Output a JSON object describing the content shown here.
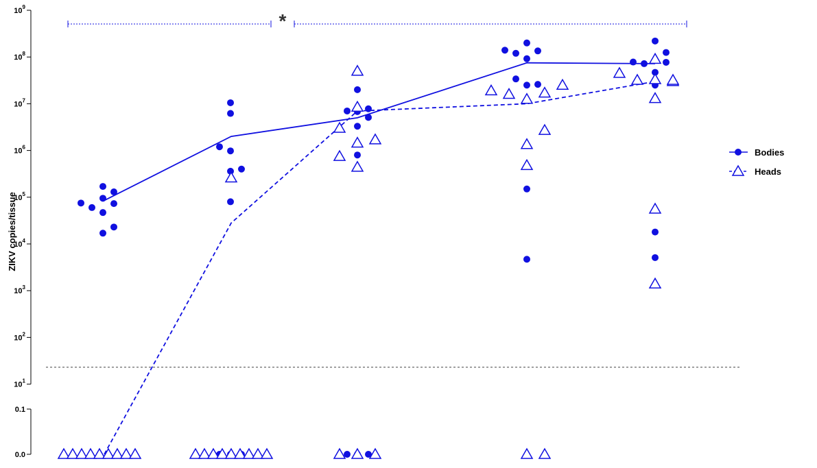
{
  "chart_data": {
    "type": "scatter",
    "title": "",
    "xlabel": "",
    "ylabel": "ZIKV copies/tissue",
    "y_scale": "log10 with lower break (0.0, 0.1)",
    "y_ticks": [
      {
        "text": "10",
        "exp": "9"
      },
      {
        "text": "10",
        "exp": "8"
      },
      {
        "text": "10",
        "exp": "7"
      },
      {
        "text": "10",
        "exp": "6"
      },
      {
        "text": "10",
        "exp": "5"
      },
      {
        "text": "10",
        "exp": "4"
      },
      {
        "text": "10",
        "exp": "3"
      },
      {
        "text": "10",
        "exp": "2"
      },
      {
        "text": "10",
        "exp": "1"
      },
      {
        "text": "0.1",
        "exp": ""
      },
      {
        "text": "0.0",
        "exp": ""
      }
    ],
    "detection_limit": 23,
    "groups": 5,
    "series": [
      {
        "name": "Bodies",
        "marker": "filled-circle",
        "line_style": "solid",
        "color": "#1010e0",
        "line_values": [
          85000,
          2000000,
          5000000,
          75000000,
          72000000
        ],
        "points": [
          {
            "g": 1,
            "dx": -34,
            "v": 75000
          },
          {
            "g": 1,
            "dx": -18,
            "v": 60000
          },
          {
            "g": 1,
            "dx": -2,
            "v": 170000
          },
          {
            "g": 1,
            "dx": -2,
            "v": 95000
          },
          {
            "g": 1,
            "dx": -2,
            "v": 47000
          },
          {
            "g": 1,
            "dx": -2,
            "v": 17000
          },
          {
            "g": 1,
            "dx": 14,
            "v": 130000
          },
          {
            "g": 1,
            "dx": 14,
            "v": 73000
          },
          {
            "g": 1,
            "dx": 14,
            "v": 23000
          },
          {
            "g": 2,
            "dx": -17,
            "v": 1200000
          },
          {
            "g": 2,
            "dx": -1,
            "v": 10500000
          },
          {
            "g": 2,
            "dx": -1,
            "v": 6200000
          },
          {
            "g": 2,
            "dx": -1,
            "v": 980000
          },
          {
            "g": 2,
            "dx": -1,
            "v": 360000
          },
          {
            "g": 2,
            "dx": -1,
            "v": 80000
          },
          {
            "g": 2,
            "dx": 15,
            "v": 400000
          },
          {
            "g": 2,
            "dx": -17,
            "v": 0
          },
          {
            "g": 2,
            "dx": -1,
            "v": 0
          },
          {
            "g": 2,
            "dx": 15,
            "v": 0
          },
          {
            "g": 3,
            "dx": -15,
            "v": 7000000
          },
          {
            "g": 3,
            "dx": 0,
            "v": 20000000
          },
          {
            "g": 3,
            "dx": 0,
            "v": 6800000
          },
          {
            "g": 3,
            "dx": 0,
            "v": 3300000
          },
          {
            "g": 3,
            "dx": 0,
            "v": 800000
          },
          {
            "g": 3,
            "dx": 16,
            "v": 7800000
          },
          {
            "g": 3,
            "dx": 16,
            "v": 5100000
          },
          {
            "g": 3,
            "dx": -15,
            "v": 0
          },
          {
            "g": 3,
            "dx": 0,
            "v": 0
          },
          {
            "g": 3,
            "dx": 16,
            "v": 0
          },
          {
            "g": 4,
            "dx": -32,
            "v": 140000000
          },
          {
            "g": 4,
            "dx": -16,
            "v": 120000000
          },
          {
            "g": 4,
            "dx": -16,
            "v": 34000000
          },
          {
            "g": 4,
            "dx": 0,
            "v": 200000000
          },
          {
            "g": 4,
            "dx": 0,
            "v": 92000000
          },
          {
            "g": 4,
            "dx": 0,
            "v": 25000000
          },
          {
            "g": 4,
            "dx": 0,
            "v": 150000
          },
          {
            "g": 4,
            "dx": 0,
            "v": 4700
          },
          {
            "g": 4,
            "dx": 16,
            "v": 135000000
          },
          {
            "g": 4,
            "dx": 16,
            "v": 26000000
          },
          {
            "g": 5,
            "dx": -32,
            "v": 78000000
          },
          {
            "g": 5,
            "dx": -16,
            "v": 72000000
          },
          {
            "g": 5,
            "dx": 0,
            "v": 220000000
          },
          {
            "g": 5,
            "dx": 0,
            "v": 47000000
          },
          {
            "g": 5,
            "dx": 0,
            "v": 25000000
          },
          {
            "g": 5,
            "dx": 0,
            "v": 18000
          },
          {
            "g": 5,
            "dx": 0,
            "v": 5100
          },
          {
            "g": 5,
            "dx": 16,
            "v": 125000000
          },
          {
            "g": 5,
            "dx": 16,
            "v": 77000000
          }
        ]
      },
      {
        "name": "Heads",
        "marker": "open-triangle",
        "line_style": "dashed",
        "color": "#1010e0",
        "line_values": [
          0,
          28000,
          7000000,
          10000000,
          30000000
        ],
        "points": [
          {
            "g": 1,
            "dx": -59,
            "v": 0
          },
          {
            "g": 1,
            "dx": -46,
            "v": 0
          },
          {
            "g": 1,
            "dx": -33,
            "v": 0
          },
          {
            "g": 1,
            "dx": -20,
            "v": 0
          },
          {
            "g": 1,
            "dx": -7,
            "v": 0
          },
          {
            "g": 1,
            "dx": 6,
            "v": 0
          },
          {
            "g": 1,
            "dx": 19,
            "v": 0
          },
          {
            "g": 1,
            "dx": 32,
            "v": 0
          },
          {
            "g": 1,
            "dx": 45,
            "v": 0
          },
          {
            "g": 2,
            "dx": -52,
            "v": 0
          },
          {
            "g": 2,
            "dx": -39,
            "v": 0
          },
          {
            "g": 2,
            "dx": -26,
            "v": 0
          },
          {
            "g": 2,
            "dx": -13,
            "v": 0
          },
          {
            "g": 2,
            "dx": 0,
            "v": 0
          },
          {
            "g": 2,
            "dx": 13,
            "v": 0
          },
          {
            "g": 2,
            "dx": 26,
            "v": 0
          },
          {
            "g": 2,
            "dx": 39,
            "v": 0
          },
          {
            "g": 2,
            "dx": 52,
            "v": 0
          },
          {
            "g": 2,
            "dx": 0,
            "v": 260000
          },
          {
            "g": 3,
            "dx": -26,
            "v": 3000000
          },
          {
            "g": 3,
            "dx": -26,
            "v": 750000
          },
          {
            "g": 3,
            "dx": 0,
            "v": 50000000
          },
          {
            "g": 3,
            "dx": 0,
            "v": 8500000
          },
          {
            "g": 3,
            "dx": 0,
            "v": 1450000
          },
          {
            "g": 3,
            "dx": 0,
            "v": 440000
          },
          {
            "g": 3,
            "dx": 26,
            "v": 1700000
          },
          {
            "g": 3,
            "dx": -26,
            "v": 0
          },
          {
            "g": 3,
            "dx": 0,
            "v": 0
          },
          {
            "g": 3,
            "dx": 26,
            "v": 0
          },
          {
            "g": 4,
            "dx": -52,
            "v": 19000000
          },
          {
            "g": 4,
            "dx": -26,
            "v": 16000000
          },
          {
            "g": 4,
            "dx": 0,
            "v": 12500000
          },
          {
            "g": 4,
            "dx": 0,
            "v": 1350000
          },
          {
            "g": 4,
            "dx": 0,
            "v": 480000
          },
          {
            "g": 4,
            "dx": 26,
            "v": 17000000
          },
          {
            "g": 4,
            "dx": 26,
            "v": 2700000
          },
          {
            "g": 4,
            "dx": 52,
            "v": 25000000
          },
          {
            "g": 4,
            "dx": 0,
            "v": 0
          },
          {
            "g": 4,
            "dx": 26,
            "v": 0
          },
          {
            "g": 5,
            "dx": -52,
            "v": 45000000
          },
          {
            "g": 5,
            "dx": -26,
            "v": 32000000
          },
          {
            "g": 5,
            "dx": 0,
            "v": 90000000
          },
          {
            "g": 5,
            "dx": 0,
            "v": 33000000
          },
          {
            "g": 5,
            "dx": 0,
            "v": 13000000
          },
          {
            "g": 5,
            "dx": 0,
            "v": 56000
          },
          {
            "g": 5,
            "dx": 0,
            "v": 1400
          },
          {
            "g": 5,
            "dx": 26,
            "v": 30000000
          },
          {
            "g": 5,
            "dx": 26,
            "v": 32000000
          }
        ]
      }
    ],
    "legend": {
      "placement": "right",
      "entries": [
        "Bodies",
        "Heads"
      ]
    },
    "significance": {
      "mark": "*",
      "from_group": 1,
      "to_group": 5
    }
  }
}
